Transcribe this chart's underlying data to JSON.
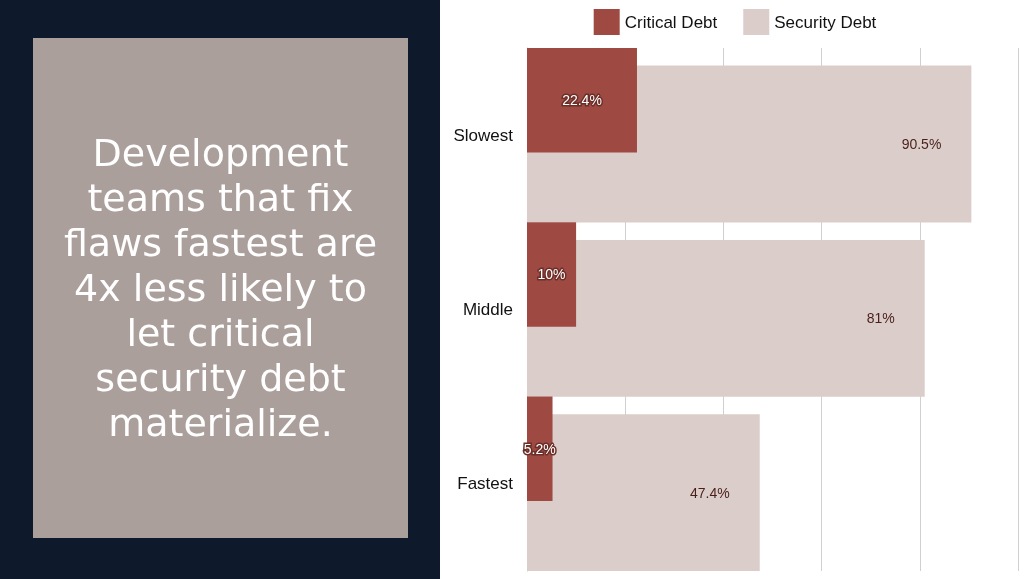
{
  "chart_data": {
    "type": "bar",
    "orientation": "horizontal",
    "categories": [
      "Slowest",
      "Middle",
      "Fastest"
    ],
    "series": [
      {
        "name": "Critical Debt",
        "color": "#9e4a42",
        "values": [
          22.4,
          10,
          5.2
        ],
        "value_labels": [
          "22.4%",
          "10%",
          "5.2%"
        ]
      },
      {
        "name": "Security Debt",
        "color": "#dbcdca",
        "values": [
          90.5,
          81,
          47.4
        ],
        "value_labels": [
          "90.5%",
          "81%",
          "47.4%"
        ]
      }
    ],
    "xlim": [
      0,
      100
    ],
    "xticks": [
      {
        "value": 0,
        "label": null
      },
      {
        "value": 20,
        "label": null
      },
      {
        "value": 40,
        "label": null
      },
      {
        "value": 60,
        "label": null
      },
      {
        "value": 80,
        "label": null
      },
      {
        "value": 100,
        "label": null
      }
    ],
    "grid": "x",
    "legend": "top",
    "tick_labels": "y",
    "annotations": [
      "Development teams that fix flaws fastest are 4x less likely to let critical security debt materialize."
    ]
  }
}
